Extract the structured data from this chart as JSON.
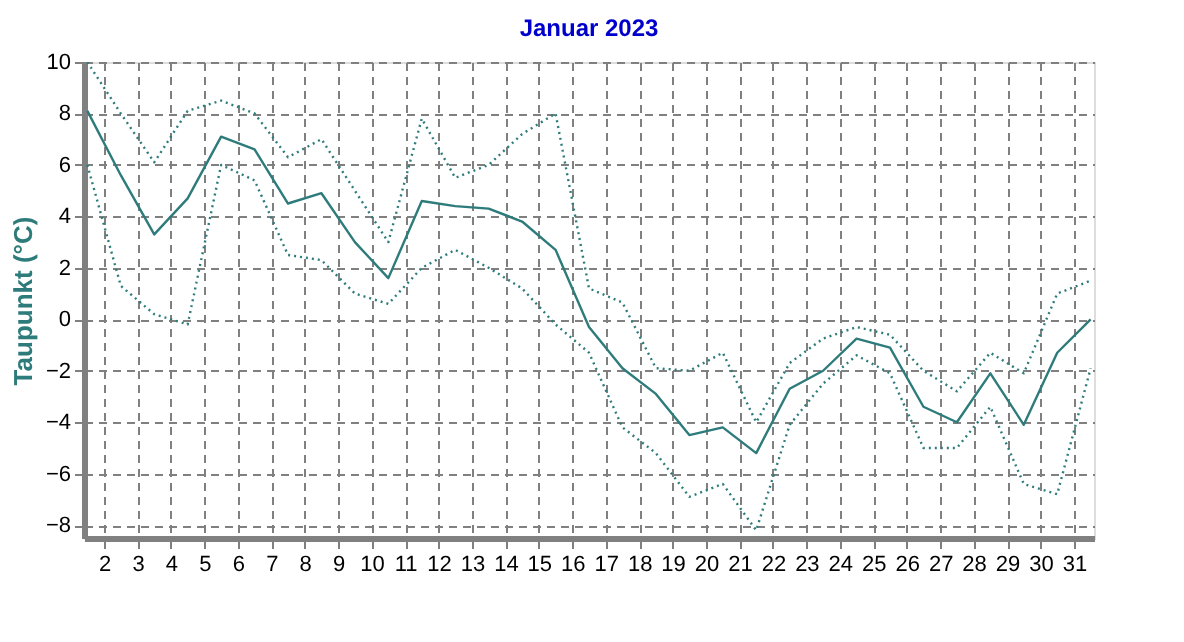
{
  "chart_data": {
    "type": "line",
    "title": "Januar 2023",
    "ylabel": "Taupunkt  (°C)",
    "x": [
      1.5,
      2.5,
      3.5,
      4.5,
      5.5,
      6.5,
      7.5,
      8.5,
      9.5,
      10.5,
      11.5,
      12.5,
      13.5,
      14.5,
      15.5,
      16.5,
      17.5,
      18.5,
      19.5,
      20.5,
      21.5,
      22.5,
      23.5,
      24.5,
      25.5,
      26.5,
      27.5,
      28.5,
      29.5,
      30.5,
      31.5
    ],
    "series": [
      {
        "color": "#2e7b7b",
        "line_style": "dotted",
        "values": [
          10.0,
          8.0,
          6.1,
          8.1,
          8.5,
          8.0,
          6.3,
          7.0,
          5.0,
          3.0,
          7.8,
          5.5,
          6.0,
          7.2,
          8.0,
          1.2,
          0.65,
          -1.9,
          -2.0,
          -1.3,
          -4.0,
          -1.7,
          -0.75,
          -0.3,
          -0.6,
          -2.0,
          -2.8,
          -1.3,
          -2.1,
          1.0,
          1.5
        ]
      },
      {
        "color": "#2e7b7b",
        "line_style": "solid",
        "values": [
          8.1,
          5.6,
          3.3,
          4.7,
          7.1,
          6.6,
          4.5,
          4.9,
          3.0,
          1.6,
          4.6,
          4.4,
          4.3,
          3.8,
          2.7,
          -0.3,
          -1.9,
          -2.9,
          -4.5,
          -4.2,
          -5.2,
          -2.7,
          -2.0,
          -0.75,
          -1.1,
          -3.4,
          -4.0,
          -2.1,
          -4.1,
          -1.3,
          0.0
        ]
      },
      {
        "color": "#2e7b7b",
        "line_style": "dotted",
        "values": [
          6.0,
          1.3,
          0.2,
          -0.2,
          6.0,
          5.4,
          2.5,
          2.3,
          1.0,
          0.6,
          2.0,
          2.7,
          2.0,
          1.2,
          -0.2,
          -1.3,
          -4.2,
          -5.2,
          -6.9,
          -6.4,
          -8.2,
          -4.1,
          -2.5,
          -1.4,
          -2.1,
          -5.0,
          -5.0,
          -3.4,
          -6.4,
          -6.8,
          -1.9
        ]
      }
    ],
    "xlim": [
      1.4,
      31.6
    ],
    "xticks": [
      2,
      3,
      4,
      5,
      6,
      7,
      8,
      9,
      10,
      11,
      12,
      13,
      14,
      15,
      16,
      17,
      18,
      19,
      20,
      21,
      22,
      23,
      24,
      25,
      26,
      27,
      28,
      29,
      30,
      31
    ],
    "ylim": [
      -8.5,
      10
    ],
    "yticks": [
      -8,
      -6,
      -4,
      -2,
      0,
      2,
      4,
      6,
      8,
      10
    ],
    "grid": true
  }
}
